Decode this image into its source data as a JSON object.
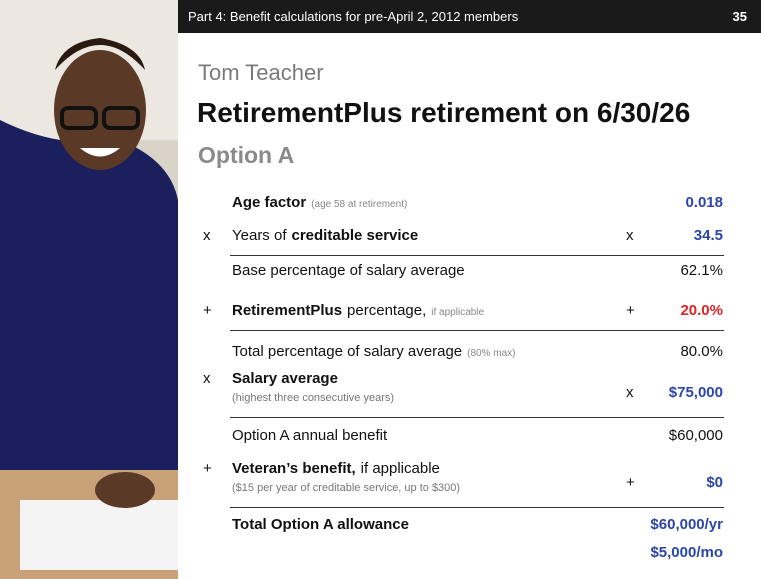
{
  "header": {
    "title": "Part 4: Benefit calculations for pre-April 2, 2012 members",
    "page": "35"
  },
  "member": "Tom Teacher",
  "title": "RetirementPlus retirement on 6/30/26",
  "subtitle": "Option A",
  "rows": [
    {
      "label": [
        {
          "text": "Age factor",
          "style": "bold"
        },
        {
          "text": "(age 58 at retirement)",
          "style": "note"
        }
      ],
      "values": [
        {
          "text": "0.018",
          "color": "#2c45a8"
        }
      ]
    },
    {
      "op": "x",
      "label": [
        {
          "text": "Years of",
          "style": "normal"
        },
        {
          "text": "creditable service",
          "style": "bold"
        }
      ],
      "op2": "x",
      "values": [
        {
          "text": "34.5",
          "color": "#2c45a8"
        }
      ],
      "rule": true
    },
    {
      "label": [
        {
          "text": "Base percentage of salary average",
          "style": "normal"
        }
      ],
      "values": [
        {
          "text": "62.1%",
          "color": "#111111"
        }
      ]
    },
    {
      "op": "+",
      "label": [
        {
          "text": "RetirementPlus",
          "style": "bold"
        },
        {
          "text": "percentage,",
          "style": "normal"
        },
        {
          "text": "if applicable",
          "style": "note"
        }
      ],
      "op2": "+",
      "values": [
        {
          "text": "20.0%",
          "color": "#e02424"
        }
      ],
      "rule": true
    },
    {
      "label": [
        {
          "text": "Total percentage of salary average",
          "style": "normal"
        },
        {
          "text": "(80% max)",
          "style": "note"
        }
      ],
      "values": [
        {
          "text": "80.0%",
          "color": "#111111"
        }
      ]
    },
    {
      "op": "x",
      "label": [
        {
          "text": "Salary average",
          "style": "bold"
        }
      ],
      "sub": "(highest three consecutive years)",
      "op2": "x",
      "values": [
        {
          "text": "$75,000",
          "color": "#2c45a8"
        }
      ],
      "rule": true
    },
    {
      "label": [
        {
          "text": "Option A annual benefit",
          "style": "normal"
        }
      ],
      "values": [
        {
          "text": "$60,000",
          "color": "#111111"
        }
      ]
    },
    {
      "op": "+",
      "label": [
        {
          "text": "Veteran’s benefit,",
          "style": "bold"
        },
        {
          "text": "if applicable",
          "style": "normal"
        }
      ],
      "sub": "($15 per year of creditable service, up to $300)",
      "op2": "+",
      "values": [
        {
          "text": "$0",
          "color": "#2c45a8"
        }
      ],
      "rule": true
    },
    {
      "label": [
        {
          "text": "Total Option A allowance",
          "style": "bold"
        }
      ],
      "values": [
        {
          "text": "$60,000/yr",
          "color": "#2c45a8"
        },
        {
          "text": "$5,000/mo",
          "color": "#2c45a8"
        }
      ]
    }
  ]
}
